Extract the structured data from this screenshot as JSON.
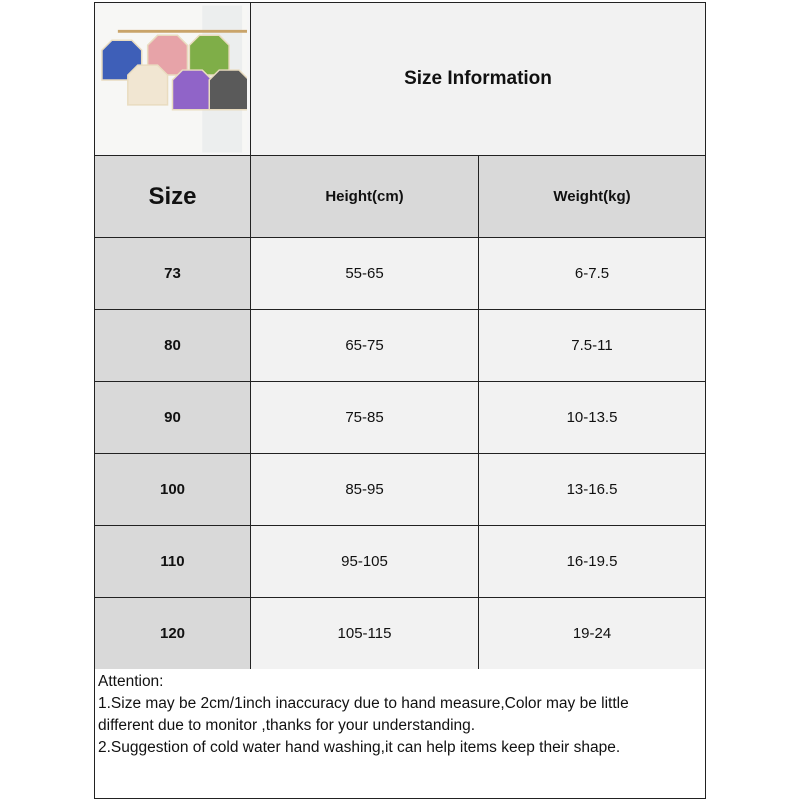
{
  "title": "Size Information",
  "headers": {
    "size": "Size",
    "height": "Height(cm)",
    "weight": "Weight(kg)"
  },
  "rows": [
    {
      "size": "73",
      "height": "55-65",
      "weight": "6-7.5"
    },
    {
      "size": "80",
      "height": "65-75",
      "weight": "7.5-11"
    },
    {
      "size": "90",
      "height": "75-85",
      "weight": "10-13.5"
    },
    {
      "size": "100",
      "height": "85-95",
      "weight": "13-16.5"
    },
    {
      "size": "110",
      "height": "95-105",
      "weight": "16-19.5"
    },
    {
      "size": "120",
      "height": "105-115",
      "weight": "19-24"
    }
  ],
  "notes": {
    "heading": "Attention:",
    "line1": "1.Size may be 2cm/1inch inaccuracy due to hand measure,Color may be little",
    "line1b": "different due to monitor ,thanks for your understanding.",
    "line2": "2.Suggestion of cold water hand washing,it can help items keep their shape."
  },
  "product_colors": [
    "#3e5fb8",
    "#e7a3a8",
    "#7fae48",
    "#f1e6d2",
    "#9064c8",
    "#5a5a5a"
  ]
}
